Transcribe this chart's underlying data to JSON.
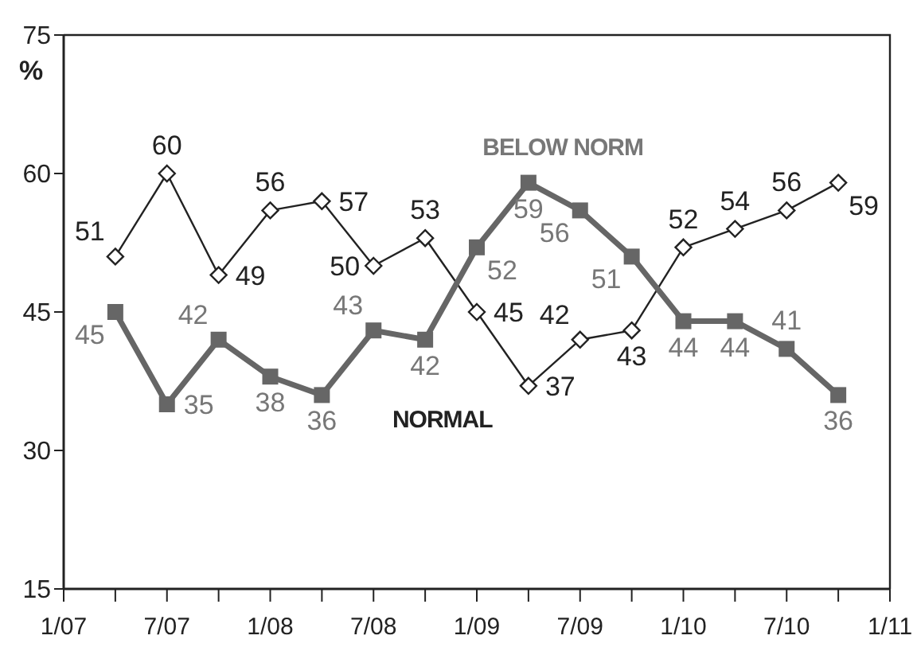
{
  "chart_data": {
    "type": "line",
    "ylabel": "%",
    "x": [
      "2007-04",
      "2007-07",
      "2007-10",
      "2008-01",
      "2008-04",
      "2008-07",
      "2008-10",
      "2009-01",
      "2009-04",
      "2009-07",
      "2009-10",
      "2010-01",
      "2010-04",
      "2010-07",
      "2010-10"
    ],
    "series": [
      {
        "name": "NORMAL",
        "color": "#222222",
        "marker": "diamond",
        "values": [
          51,
          60,
          49,
          56,
          57,
          50,
          53,
          45,
          37,
          42,
          43,
          52,
          54,
          56,
          59
        ]
      },
      {
        "name": "BELOW NORM",
        "color": "#666666",
        "marker": "square",
        "values": [
          45,
          35,
          42,
          38,
          36,
          43,
          42,
          52,
          59,
          56,
          51,
          44,
          44,
          41,
          36
        ]
      }
    ],
    "xlim": [
      "2007-01",
      "2011-01"
    ],
    "xticks": [
      {
        "value": "2007-01",
        "label": "1/07"
      },
      {
        "value": "2007-04",
        "label": null
      },
      {
        "value": "2007-07",
        "label": "7/07"
      },
      {
        "value": "2007-10",
        "label": null
      },
      {
        "value": "2008-01",
        "label": "1/08"
      },
      {
        "value": "2008-04",
        "label": null
      },
      {
        "value": "2008-07",
        "label": "7/08"
      },
      {
        "value": "2008-10",
        "label": null
      },
      {
        "value": "2009-01",
        "label": "1/09"
      },
      {
        "value": "2009-04",
        "label": null
      },
      {
        "value": "2009-07",
        "label": "7/09"
      },
      {
        "value": "2009-10",
        "label": null
      },
      {
        "value": "2010-01",
        "label": "1/10"
      },
      {
        "value": "2010-04",
        "label": null
      },
      {
        "value": "2010-07",
        "label": "7/10"
      },
      {
        "value": "2010-10",
        "label": null
      },
      {
        "value": "2011-01",
        "label": "1/11"
      }
    ],
    "ylim": [
      15,
      75
    ],
    "yticks": [
      15,
      30,
      45,
      60,
      75
    ],
    "grid": false,
    "legend": false,
    "data_labels": true,
    "line_style": "solid"
  }
}
